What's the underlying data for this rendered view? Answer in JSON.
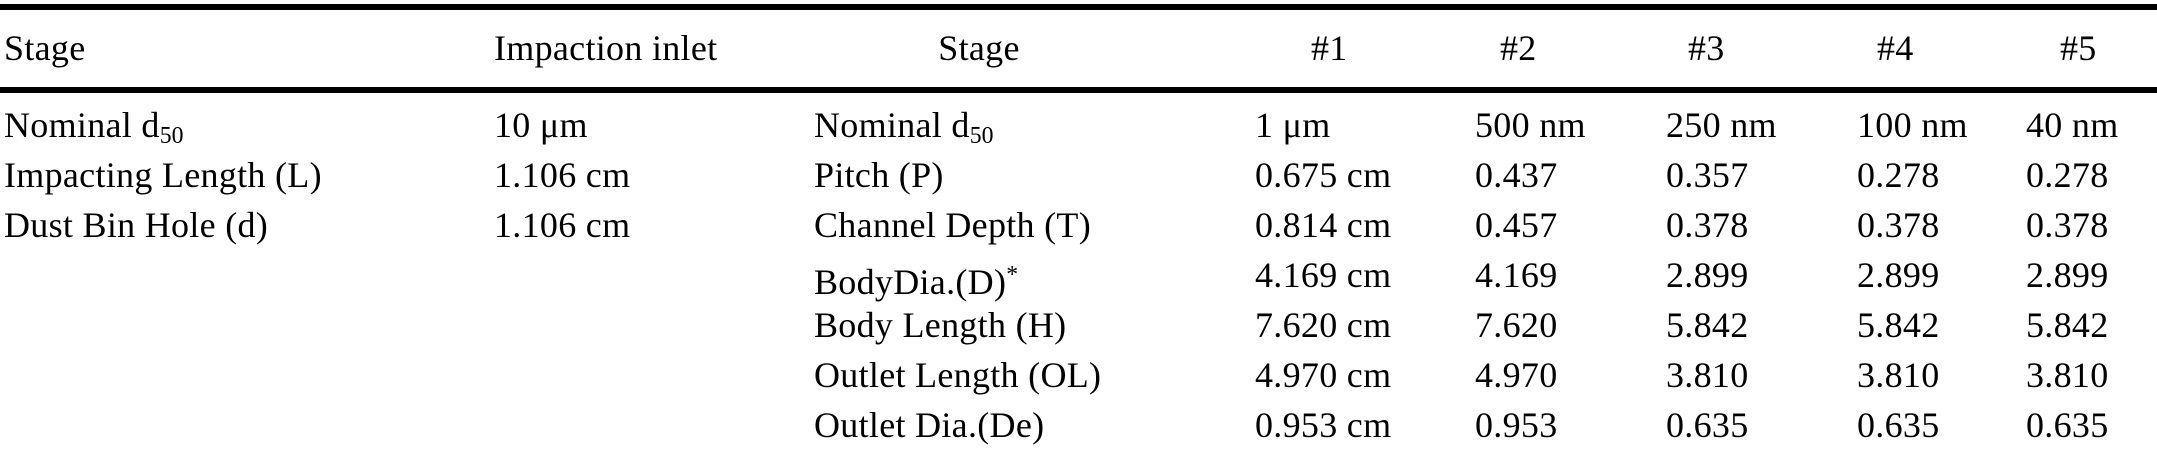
{
  "table": {
    "headers": [
      "Stage",
      "Impaction inlet",
      "Stage",
      "#1",
      "#2",
      "#3",
      "#4",
      "#5"
    ],
    "rows": [
      {
        "c1": "Nominal d",
        "c1sub": "50",
        "c2": "10 μm",
        "c3": "Nominal d",
        "c3sub": "50",
        "c4": "1 μm",
        "c5": "500 nm",
        "c6": "250 nm",
        "c7": "100 nm",
        "c8": "40 nm"
      },
      {
        "c1": "Impacting Length (L)",
        "c2": "1.106 cm",
        "c3": "Pitch (P)",
        "c4": "0.675 cm",
        "c5": "0.437",
        "c6": "0.357",
        "c7": "0.278",
        "c8": "0.278"
      },
      {
        "c1": "Dust Bin Hole (d)",
        "c2": "1.106 cm",
        "c3": "Channel Depth (T)",
        "c4": "0.814 cm",
        "c5": "0.457",
        "c6": "0.378",
        "c7": "0.378",
        "c8": "0.378"
      },
      {
        "c1": "",
        "c2": "",
        "c3": "BodyDia.(D)",
        "c3sup": "*",
        "c4": "4.169 cm",
        "c5": "4.169",
        "c6": "2.899",
        "c7": "2.899",
        "c8": "2.899"
      },
      {
        "c1": "",
        "c2": "",
        "c3": "Body Length (H)",
        "c4": "7.620 cm",
        "c5": "7.620",
        "c6": "5.842",
        "c7": "5.842",
        "c8": "5.842"
      },
      {
        "c1": "",
        "c2": "",
        "c3": "Outlet Length (OL)",
        "c4": "4.970 cm",
        "c5": "4.970",
        "c6": "3.810",
        "c7": "3.810",
        "c8": "3.810"
      },
      {
        "c1": "",
        "c2": "",
        "c3": "Outlet Dia.(De)",
        "c4": "0.953 cm",
        "c5": "0.953",
        "c6": "0.635",
        "c7": "0.635",
        "c8": "0.635"
      }
    ]
  }
}
